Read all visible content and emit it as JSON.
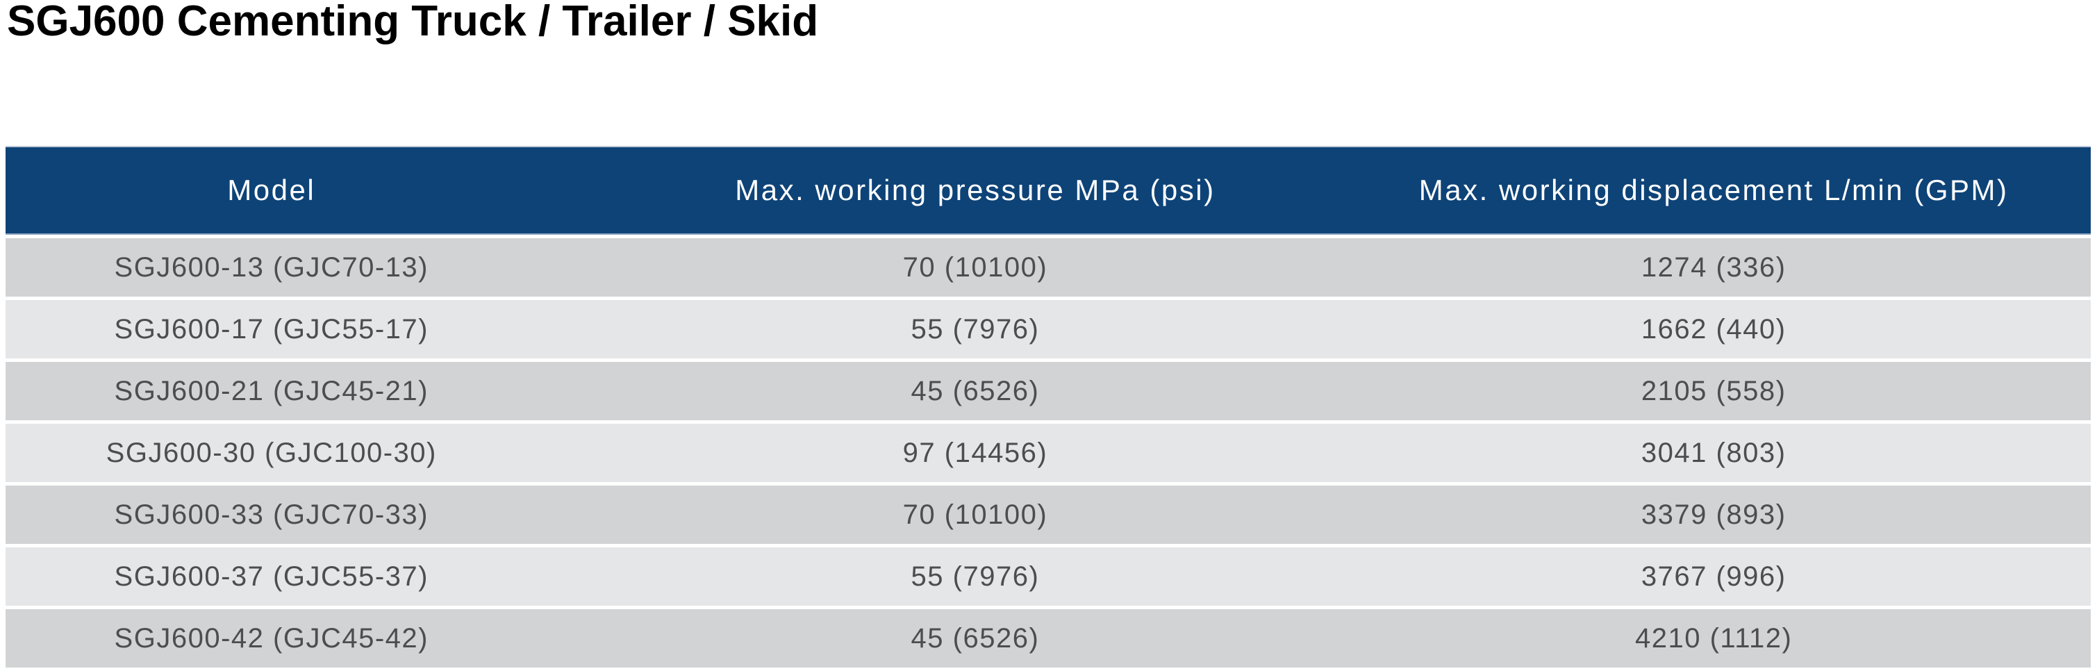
{
  "title": "SGJ600 Cementing Truck / Trailer / Skid",
  "colors": {
    "header_bg": "#0E4377",
    "header_text": "#FFFFFF",
    "row_odd_bg": "#D1D3D4",
    "row_even_bg": "#E5E6E8",
    "row_text": "#4D4D4F",
    "title_text": "#000000"
  },
  "table": {
    "columns": [
      "Model",
      "Max. working pressure MPa (psi)",
      "Max. working displacement L/min (GPM)"
    ],
    "rows": [
      {
        "model": "SGJ600-13 (GJC70-13)",
        "pressure": "70 (10100)",
        "displacement": "1274 (336)"
      },
      {
        "model": "SGJ600-17 (GJC55-17)",
        "pressure": "55 (7976)",
        "displacement": "1662 (440)"
      },
      {
        "model": "SGJ600-21 (GJC45-21)",
        "pressure": "45 (6526)",
        "displacement": "2105 (558)"
      },
      {
        "model": "SGJ600-30 (GJC100-30)",
        "pressure": "97 (14456)",
        "displacement": "3041 (803)"
      },
      {
        "model": "SGJ600-33 (GJC70-33)",
        "pressure": "70 (10100)",
        "displacement": "3379 (893)"
      },
      {
        "model": "SGJ600-37 (GJC55-37)",
        "pressure": "55 (7976)",
        "displacement": "3767 (996)"
      },
      {
        "model": "SGJ600-42 (GJC45-42)",
        "pressure": "45 (6526)",
        "displacement": "4210 (1112)"
      }
    ]
  }
}
